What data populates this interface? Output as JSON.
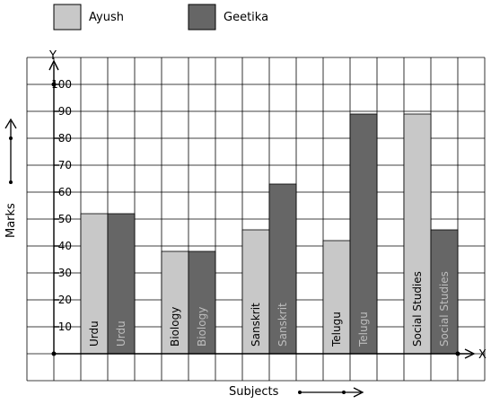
{
  "chart_data": {
    "type": "bar",
    "xlabel": "Subjects",
    "ylabel": "Marks",
    "y_axis_letter": "Y",
    "x_axis_letter": "X",
    "ylim": [
      0,
      100
    ],
    "y_ticks": [
      10,
      20,
      30,
      40,
      50,
      60,
      70,
      80,
      90,
      100
    ],
    "y_tick_labels": [
      "10",
      "20",
      "30",
      "40",
      "50",
      "60",
      "70",
      "80",
      "90",
      "100"
    ],
    "grid": true,
    "legend_position": "top-left",
    "categories": [
      "Urdu",
      "Biology",
      "Sanskrit",
      "Telugu",
      "Social Studies"
    ],
    "series": [
      {
        "name": "Ayush",
        "color": "#c8c8c8",
        "values": [
          52,
          38,
          46,
          42,
          89
        ]
      },
      {
        "name": "Geetika",
        "color": "#666666",
        "values": [
          52,
          38,
          63,
          89,
          46
        ]
      }
    ]
  }
}
